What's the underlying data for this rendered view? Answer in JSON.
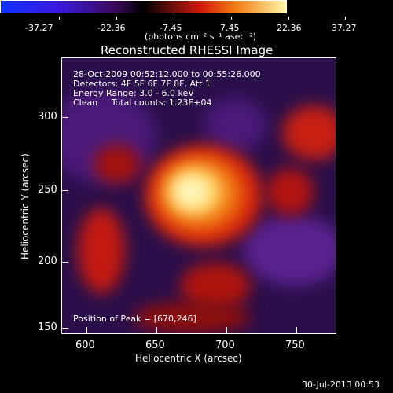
{
  "colorbar": {
    "ticks": [
      "-37.27",
      "-22.36",
      "-7.45",
      "7.45",
      "22.36",
      "37.27"
    ],
    "units": "(photons cm⁻² s⁻¹ asec⁻²)"
  },
  "title": "Reconstructed RHESSI Image",
  "annotations": {
    "time_range": "28-Oct-2009 00:52:12.000 to 00:55:26.000",
    "detectors": "Detectors: 4F 5F 6F 7F 8F, Att 1",
    "energy": "Energy Range: 3.0 - 6.0 keV",
    "method": "Clean     Total counts: 1.23E+04",
    "peak": "Position of Peak = [670,246]"
  },
  "axes": {
    "xlabel": "Heliocentric X (arcsec)",
    "ylabel": "Heliocentric Y (arcsec)",
    "xticks": [
      "600",
      "650",
      "700",
      "750"
    ],
    "yticks": [
      "300",
      "250",
      "200",
      "150"
    ]
  },
  "footer": {
    "date": "30-Jul-2013 00:53"
  },
  "colors": {
    "background": "#000000",
    "hot": "#fff3a0",
    "warm": "#d81e0c",
    "cool": "#3c1470"
  }
}
